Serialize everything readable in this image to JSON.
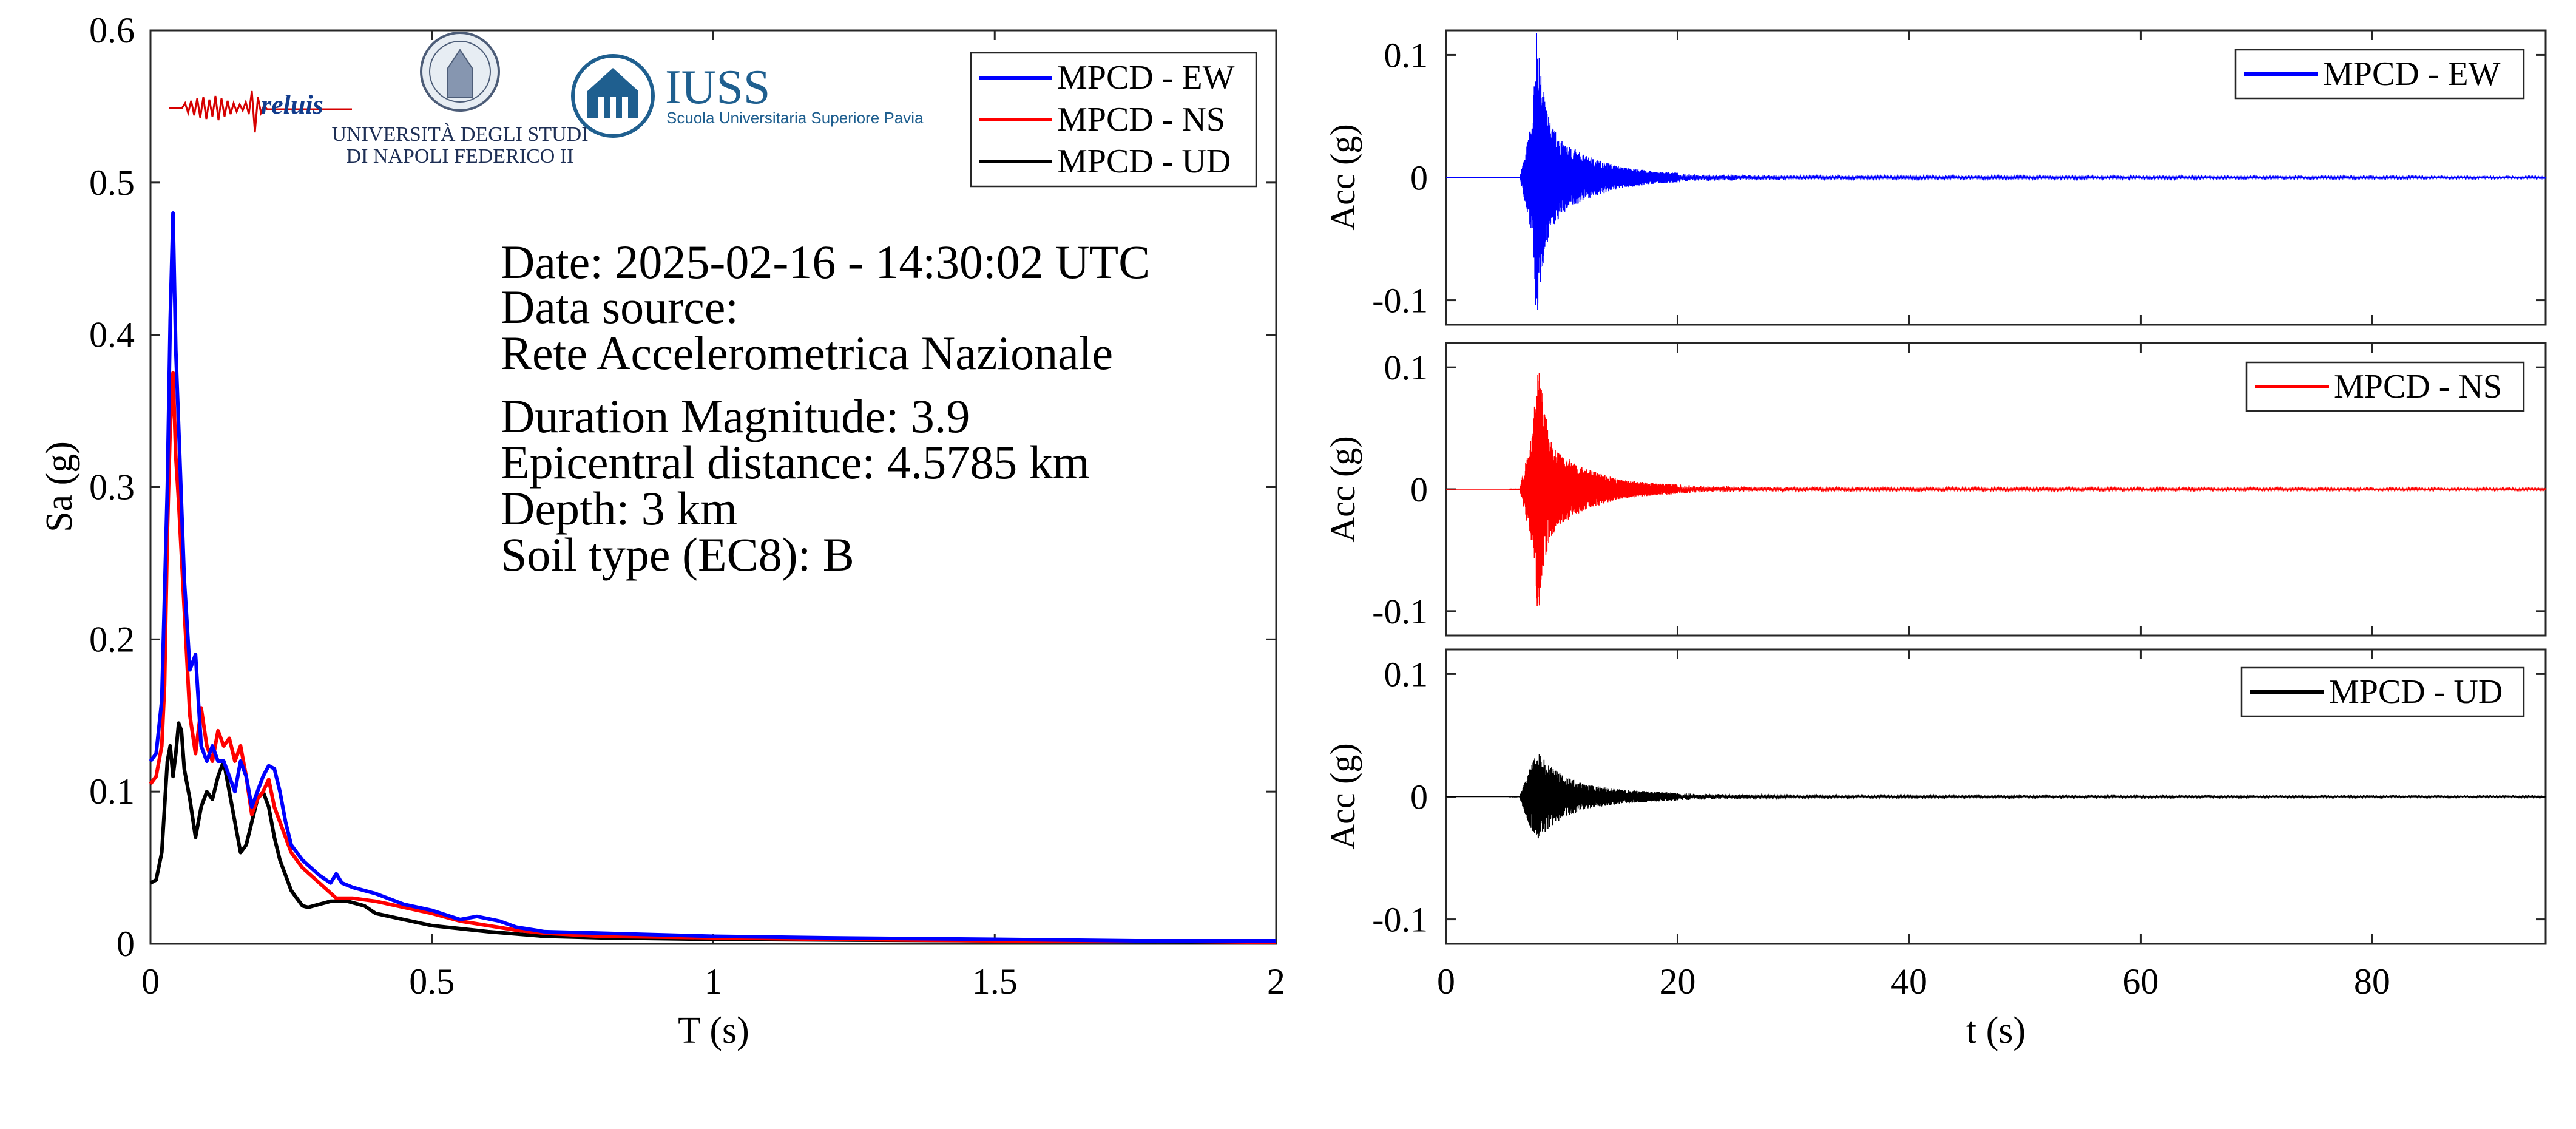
{
  "logos": {
    "reluis": "reluis",
    "unina_line1": "UNIVERSITÀ DEGLI STUDI",
    "unina_line2": "DI NAPOLI FEDERICO II",
    "iuss_title": "IUSS",
    "iuss_subtitle": "Scuola Universitaria Superiore Pavia"
  },
  "info": {
    "date": "Date: 2025-02-16 - 14:30:02 UTC",
    "source_label": "Data source:",
    "source": "Rete Accelerometrica Nazionale",
    "magnitude": "Duration Magnitude: 3.9",
    "distance": "Epicentral distance: 4.5785 km",
    "depth": "Depth: 3 km",
    "soil": "Soil type (EC8): B"
  },
  "colors": {
    "EW": "#0000ff",
    "NS": "#ff0000",
    "UD": "#000000"
  },
  "chart_data": [
    {
      "type": "line",
      "xlabel": "T (s)",
      "ylabel": "Sa (g)",
      "xlim": [
        0,
        2
      ],
      "ylim": [
        0,
        0.6
      ],
      "xticks": [
        0,
        0.5,
        1,
        1.5,
        2
      ],
      "xtick_labels": [
        "0",
        "0.5",
        "1",
        "1.5",
        "2"
      ],
      "yticks": [
        0,
        0.1,
        0.2,
        0.3,
        0.4,
        0.5,
        0.6
      ],
      "ytick_labels": [
        "0",
        "0.1",
        "0.2",
        "0.3",
        "0.4",
        "0.5",
        "0.6"
      ],
      "grid": false,
      "legend_position": "top-right",
      "series": [
        {
          "name": "MPCD - EW",
          "color": "#0000ff",
          "x": [
            0,
            0.01,
            0.02,
            0.03,
            0.035,
            0.04,
            0.045,
            0.05,
            0.055,
            0.06,
            0.07,
            0.08,
            0.09,
            0.1,
            0.11,
            0.12,
            0.13,
            0.14,
            0.15,
            0.16,
            0.17,
            0.18,
            0.19,
            0.2,
            0.21,
            0.22,
            0.23,
            0.24,
            0.25,
            0.27,
            0.3,
            0.32,
            0.33,
            0.34,
            0.36,
            0.4,
            0.45,
            0.5,
            0.55,
            0.58,
            0.62,
            0.65,
            0.7,
            0.8,
            1.0,
            1.2,
            1.5,
            1.75,
            2.0
          ],
          "y": [
            0.12,
            0.125,
            0.16,
            0.3,
            0.41,
            0.48,
            0.39,
            0.34,
            0.29,
            0.24,
            0.18,
            0.19,
            0.13,
            0.12,
            0.13,
            0.12,
            0.12,
            0.11,
            0.1,
            0.12,
            0.11,
            0.09,
            0.1,
            0.11,
            0.117,
            0.115,
            0.1,
            0.08,
            0.065,
            0.055,
            0.045,
            0.04,
            0.046,
            0.04,
            0.037,
            0.033,
            0.026,
            0.022,
            0.016,
            0.018,
            0.015,
            0.011,
            0.008,
            0.007,
            0.005,
            0.004,
            0.003,
            0.002,
            0.002
          ]
        },
        {
          "name": "MPCD - NS",
          "color": "#ff0000",
          "x": [
            0,
            0.01,
            0.02,
            0.025,
            0.03,
            0.035,
            0.04,
            0.045,
            0.05,
            0.06,
            0.07,
            0.08,
            0.09,
            0.1,
            0.11,
            0.12,
            0.13,
            0.14,
            0.15,
            0.16,
            0.17,
            0.18,
            0.19,
            0.2,
            0.21,
            0.22,
            0.23,
            0.24,
            0.25,
            0.27,
            0.3,
            0.33,
            0.36,
            0.4,
            0.45,
            0.5,
            0.55,
            0.6,
            0.65,
            0.7,
            0.8,
            1.0,
            1.2,
            1.5,
            1.75,
            2.0
          ],
          "y": [
            0.105,
            0.11,
            0.13,
            0.17,
            0.27,
            0.34,
            0.375,
            0.32,
            0.29,
            0.22,
            0.15,
            0.125,
            0.155,
            0.13,
            0.12,
            0.14,
            0.13,
            0.135,
            0.12,
            0.13,
            0.11,
            0.085,
            0.095,
            0.1,
            0.108,
            0.09,
            0.08,
            0.07,
            0.06,
            0.05,
            0.04,
            0.03,
            0.03,
            0.028,
            0.024,
            0.02,
            0.015,
            0.012,
            0.009,
            0.007,
            0.005,
            0.004,
            0.003,
            0.002,
            0.002,
            0.001
          ]
        },
        {
          "name": "MPCD - UD",
          "color": "#000000",
          "x": [
            0,
            0.01,
            0.02,
            0.03,
            0.035,
            0.04,
            0.045,
            0.05,
            0.055,
            0.06,
            0.07,
            0.08,
            0.09,
            0.1,
            0.11,
            0.12,
            0.13,
            0.135,
            0.14,
            0.15,
            0.16,
            0.17,
            0.18,
            0.19,
            0.2,
            0.21,
            0.22,
            0.23,
            0.24,
            0.25,
            0.26,
            0.27,
            0.28,
            0.3,
            0.32,
            0.35,
            0.38,
            0.4,
            0.45,
            0.5,
            0.55,
            0.6,
            0.7,
            0.8,
            1.0,
            1.5,
            2.0
          ],
          "y": [
            0.04,
            0.042,
            0.06,
            0.12,
            0.13,
            0.11,
            0.125,
            0.145,
            0.14,
            0.115,
            0.095,
            0.07,
            0.09,
            0.1,
            0.095,
            0.11,
            0.12,
            0.11,
            0.1,
            0.08,
            0.06,
            0.065,
            0.08,
            0.095,
            0.1,
            0.09,
            0.07,
            0.055,
            0.045,
            0.035,
            0.03,
            0.025,
            0.024,
            0.026,
            0.028,
            0.028,
            0.025,
            0.02,
            0.016,
            0.012,
            0.01,
            0.008,
            0.005,
            0.004,
            0.003,
            0.002,
            0.001
          ]
        }
      ]
    },
    {
      "type": "line",
      "ylabel": "Acc (g)",
      "xlim": [
        0,
        95
      ],
      "ylim": [
        -0.12,
        0.12
      ],
      "yticks": [
        -0.1,
        0,
        0.1
      ],
      "ytick_labels": [
        "-0.1",
        "0",
        "0.1"
      ],
      "legend_position": "top-right",
      "series": [
        {
          "name": "MPCD - EW",
          "color": "#0000ff",
          "envelope_t": [
            6.4,
            7.5,
            7.8,
            8.3,
            9,
            10,
            12,
            15,
            18,
            22,
            30,
            95
          ],
          "envelope_a": [
            0.002,
            0.05,
            0.12,
            0.075,
            0.045,
            0.03,
            0.018,
            0.009,
            0.005,
            0.003,
            0.0015,
            0.001
          ]
        }
      ]
    },
    {
      "type": "line",
      "ylabel": "Acc (g)",
      "xlim": [
        0,
        95
      ],
      "ylim": [
        -0.12,
        0.12
      ],
      "yticks": [
        -0.1,
        0,
        0.1
      ],
      "ytick_labels": [
        "-0.1",
        "0",
        "0.1"
      ],
      "legend_position": "top-right",
      "series": [
        {
          "name": "MPCD - NS",
          "color": "#ff0000",
          "envelope_t": [
            6.4,
            7.5,
            7.9,
            8.4,
            9,
            10,
            12,
            15,
            18,
            22,
            30,
            95
          ],
          "envelope_a": [
            0.002,
            0.05,
            0.105,
            0.075,
            0.04,
            0.028,
            0.017,
            0.008,
            0.005,
            0.003,
            0.0015,
            0.001
          ]
        }
      ]
    },
    {
      "type": "line",
      "xlabel": "t (s)",
      "ylabel": "Acc (g)",
      "xlim": [
        0,
        95
      ],
      "ylim": [
        -0.12,
        0.12
      ],
      "xticks": [
        0,
        20,
        40,
        60,
        80
      ],
      "xtick_labels": [
        "0",
        "20",
        "40",
        "60",
        "80"
      ],
      "yticks": [
        -0.1,
        0,
        0.1
      ],
      "ytick_labels": [
        "-0.1",
        "0",
        "0.1"
      ],
      "legend_position": "top-right",
      "series": [
        {
          "name": "MPCD - UD",
          "color": "#000000",
          "envelope_t": [
            6.4,
            7.2,
            8.0,
            9,
            10,
            12,
            15,
            18,
            22,
            30,
            95
          ],
          "envelope_a": [
            0.002,
            0.025,
            0.036,
            0.025,
            0.018,
            0.01,
            0.006,
            0.004,
            0.0025,
            0.0012,
            0.0008
          ]
        }
      ]
    }
  ]
}
